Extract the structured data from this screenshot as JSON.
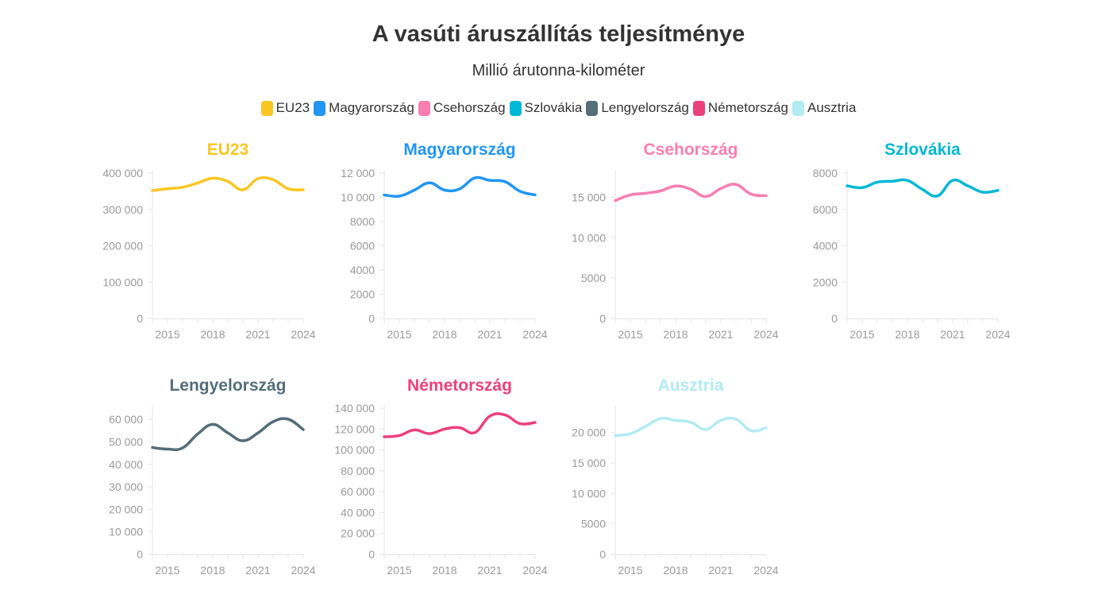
{
  "title": "A vasúti áruszállítás teljesítménye",
  "subtitle": "Millió árutonna-kilométer",
  "legend": [
    {
      "label": "EU23",
      "color": "#F9C623"
    },
    {
      "label": "Magyarország",
      "color": "#2196F3"
    },
    {
      "label": "Csehország",
      "color": "#F77EB1"
    },
    {
      "label": "Szlovákia",
      "color": "#00B8D4"
    },
    {
      "label": "Lengyelország",
      "color": "#546E7A"
    },
    {
      "label": "Németország",
      "color": "#EC407A"
    },
    {
      "label": "Ausztria",
      "color": "#B2EBF2"
    }
  ],
  "chart_data": [
    {
      "type": "line",
      "title": "EU23",
      "color": "#F9C623",
      "x": [
        2014,
        2015,
        2016,
        2017,
        2018,
        2019,
        2020,
        2021,
        2022,
        2023,
        2024
      ],
      "values": [
        352000,
        357000,
        361000,
        373000,
        386000,
        377000,
        354000,
        385000,
        382000,
        357000,
        354000
      ],
      "yticks": [
        0,
        100000,
        200000,
        300000,
        400000
      ],
      "ytick_labels": [
        "0",
        "100 000",
        "200 000",
        "300 000",
        "400 000"
      ],
      "ylim": [
        0,
        400000
      ],
      "xticks": [
        "2015",
        "2018",
        "2021",
        "2024"
      ]
    },
    {
      "type": "line",
      "title": "Magyarország",
      "color": "#2196F3",
      "x": [
        2014,
        2015,
        2016,
        2017,
        2018,
        2019,
        2020,
        2021,
        2022,
        2023,
        2024
      ],
      "values": [
        10200,
        10100,
        10600,
        11200,
        10600,
        10700,
        11600,
        11400,
        11300,
        10500,
        10200
      ],
      "yticks": [
        0,
        2000,
        4000,
        6000,
        8000,
        10000,
        12000
      ],
      "ytick_labels": [
        "0",
        "2000",
        "4000",
        "6000",
        "8000",
        "10 000",
        "12 000"
      ],
      "ylim": [
        0,
        12000
      ],
      "xticks": [
        "2015",
        "2018",
        "2021",
        "2024"
      ]
    },
    {
      "type": "line",
      "title": "Csehország",
      "color": "#F77EB1",
      "x": [
        2014,
        2015,
        2016,
        2017,
        2018,
        2019,
        2020,
        2021,
        2022,
        2023,
        2024
      ],
      "values": [
        14600,
        15300,
        15500,
        15800,
        16400,
        16000,
        15100,
        16100,
        16600,
        15400,
        15200
      ],
      "yticks": [
        0,
        5000,
        10000,
        15000
      ],
      "ytick_labels": [
        "0",
        "5000",
        "10 000",
        "15 000"
      ],
      "ylim": [
        0,
        18000
      ],
      "xticks": [
        "2015",
        "2018",
        "2021",
        "2024"
      ]
    },
    {
      "type": "line",
      "title": "Szlovákia",
      "color": "#00B8D4",
      "x": [
        2014,
        2015,
        2016,
        2017,
        2018,
        2019,
        2020,
        2021,
        2022,
        2023,
        2024
      ],
      "values": [
        7300,
        7200,
        7500,
        7550,
        7600,
        7100,
        6750,
        7600,
        7300,
        6950,
        7050
      ],
      "yticks": [
        0,
        2000,
        4000,
        6000,
        8000
      ],
      "ytick_labels": [
        "0",
        "2000",
        "4000",
        "6000",
        "8000"
      ],
      "ylim": [
        0,
        8000
      ],
      "xticks": [
        "2015",
        "2018",
        "2021",
        "2024"
      ]
    },
    {
      "type": "line",
      "title": "Lengyelország",
      "color": "#546E7A",
      "x": [
        2014,
        2015,
        2016,
        2017,
        2018,
        2019,
        2020,
        2021,
        2022,
        2023,
        2024
      ],
      "values": [
        47500,
        46800,
        47300,
        53500,
        57800,
        54000,
        50500,
        54000,
        59000,
        60100,
        55500
      ],
      "yticks": [
        0,
        10000,
        20000,
        30000,
        40000,
        50000,
        60000
      ],
      "ytick_labels": [
        "0",
        "10 000",
        "20 000",
        "30 000",
        "40 000",
        "50 000",
        "60 000"
      ],
      "ylim": [
        0,
        65000
      ],
      "xticks": [
        "2015",
        "2018",
        "2021",
        "2024"
      ]
    },
    {
      "type": "line",
      "title": "Németország",
      "color": "#EC407A",
      "x": [
        2014,
        2015,
        2016,
        2017,
        2018,
        2019,
        2020,
        2021,
        2022,
        2023,
        2024
      ],
      "values": [
        112600,
        113800,
        119200,
        115600,
        120000,
        121300,
        116600,
        132400,
        133600,
        125200,
        126300
      ],
      "yticks": [
        0,
        20000,
        40000,
        60000,
        80000,
        100000,
        120000,
        140000
      ],
      "ytick_labels": [
        "0",
        "20 000",
        "40 000",
        "60 000",
        "80 000",
        "100 000",
        "120 000",
        "140 000"
      ],
      "ylim": [
        0,
        140000
      ],
      "xticks": [
        "2015",
        "2018",
        "2021",
        "2024"
      ]
    },
    {
      "type": "line",
      "title": "Ausztria",
      "color": "#B2EBF2",
      "x": [
        2014,
        2015,
        2016,
        2017,
        2018,
        2019,
        2020,
        2021,
        2022,
        2023,
        2024
      ],
      "values": [
        19500,
        19800,
        21000,
        22300,
        22000,
        21700,
        20500,
        22000,
        22200,
        20300,
        20800
      ],
      "yticks": [
        0,
        5000,
        10000,
        15000,
        20000
      ],
      "ytick_labels": [
        "0",
        "5000",
        "10 000",
        "15 000",
        "20 000"
      ],
      "ylim": [
        0,
        24000
      ],
      "xticks": [
        "2015",
        "2018",
        "2021",
        "2024"
      ]
    }
  ]
}
